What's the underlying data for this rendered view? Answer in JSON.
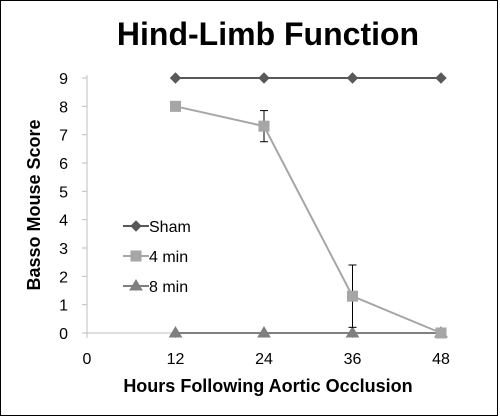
{
  "chart_data": {
    "type": "line",
    "title": "Hind-Limb Function",
    "xlabel": "Hours Following Aortic Occlusion",
    "ylabel": "Basso Mouse Score",
    "xlim": [
      0,
      48
    ],
    "ylim": [
      0,
      9
    ],
    "xticks": [
      0,
      12,
      24,
      36,
      48
    ],
    "yticks": [
      0,
      1,
      2,
      3,
      4,
      5,
      6,
      7,
      8,
      9
    ],
    "grid": false,
    "legend_position": "left-middle",
    "series": [
      {
        "name": "Sham",
        "marker": "diamond",
        "color": "#595959",
        "x": [
          12,
          24,
          36,
          48
        ],
        "y": [
          9,
          9,
          9,
          9
        ],
        "error": [
          0,
          0,
          0,
          0
        ]
      },
      {
        "name": "4 min",
        "marker": "square",
        "color": "#a6a6a6",
        "x": [
          12,
          24,
          36,
          48
        ],
        "y": [
          8,
          7.3,
          1.3,
          0
        ],
        "error": [
          0,
          0.55,
          1.1,
          0
        ]
      },
      {
        "name": "8 min",
        "marker": "triangle",
        "color": "#7f7f7f",
        "x": [
          12,
          24,
          36,
          48
        ],
        "y": [
          0,
          0,
          0,
          0
        ],
        "error": [
          0,
          0,
          0,
          0
        ]
      }
    ]
  }
}
